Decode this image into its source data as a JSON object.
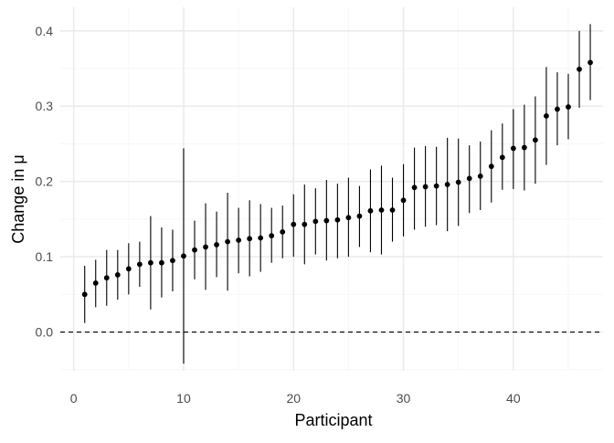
{
  "chart_data": {
    "type": "scatter",
    "title": "",
    "xlabel": "Participant",
    "ylabel": "Change in μ",
    "xlim": [
      0,
      47
    ],
    "ylim": [
      -0.05,
      0.42
    ],
    "x_ticks": [
      0,
      10,
      20,
      30,
      40
    ],
    "y_ticks": [
      0.0,
      0.1,
      0.2,
      0.3,
      0.4
    ],
    "x_tick_labels": [
      "0",
      "10",
      "20",
      "30",
      "40"
    ],
    "y_tick_labels": [
      "0.0",
      "0.1",
      "0.2",
      "0.3",
      "0.4"
    ],
    "grid": true,
    "reference_line": {
      "y": 0.0,
      "style": "dashed"
    },
    "points": [
      {
        "x": 1,
        "y": 0.05,
        "lo": 0.012,
        "hi": 0.088
      },
      {
        "x": 2,
        "y": 0.065,
        "lo": 0.033,
        "hi": 0.096
      },
      {
        "x": 3,
        "y": 0.072,
        "lo": 0.035,
        "hi": 0.109
      },
      {
        "x": 4,
        "y": 0.076,
        "lo": 0.043,
        "hi": 0.109
      },
      {
        "x": 5,
        "y": 0.084,
        "lo": 0.05,
        "hi": 0.118
      },
      {
        "x": 6,
        "y": 0.09,
        "lo": 0.06,
        "hi": 0.12
      },
      {
        "x": 7,
        "y": 0.092,
        "lo": 0.03,
        "hi": 0.154
      },
      {
        "x": 8,
        "y": 0.092,
        "lo": 0.046,
        "hi": 0.139
      },
      {
        "x": 9,
        "y": 0.095,
        "lo": 0.054,
        "hi": 0.136
      },
      {
        "x": 10,
        "y": 0.101,
        "lo": -0.042,
        "hi": 0.244
      },
      {
        "x": 11,
        "y": 0.109,
        "lo": 0.07,
        "hi": 0.148
      },
      {
        "x": 12,
        "y": 0.113,
        "lo": 0.056,
        "hi": 0.171
      },
      {
        "x": 13,
        "y": 0.116,
        "lo": 0.073,
        "hi": 0.16
      },
      {
        "x": 14,
        "y": 0.12,
        "lo": 0.055,
        "hi": 0.185
      },
      {
        "x": 15,
        "y": 0.122,
        "lo": 0.078,
        "hi": 0.165
      },
      {
        "x": 16,
        "y": 0.124,
        "lo": 0.074,
        "hi": 0.175
      },
      {
        "x": 17,
        "y": 0.125,
        "lo": 0.08,
        "hi": 0.17
      },
      {
        "x": 18,
        "y": 0.128,
        "lo": 0.092,
        "hi": 0.165
      },
      {
        "x": 19,
        "y": 0.133,
        "lo": 0.098,
        "hi": 0.168
      },
      {
        "x": 20,
        "y": 0.143,
        "lo": 0.1,
        "hi": 0.183
      },
      {
        "x": 21,
        "y": 0.143,
        "lo": 0.09,
        "hi": 0.196
      },
      {
        "x": 22,
        "y": 0.147,
        "lo": 0.103,
        "hi": 0.191
      },
      {
        "x": 23,
        "y": 0.148,
        "lo": 0.095,
        "hi": 0.202
      },
      {
        "x": 24,
        "y": 0.149,
        "lo": 0.098,
        "hi": 0.197
      },
      {
        "x": 25,
        "y": 0.152,
        "lo": 0.1,
        "hi": 0.205
      },
      {
        "x": 26,
        "y": 0.154,
        "lo": 0.113,
        "hi": 0.194
      },
      {
        "x": 27,
        "y": 0.161,
        "lo": 0.106,
        "hi": 0.216
      },
      {
        "x": 28,
        "y": 0.162,
        "lo": 0.103,
        "hi": 0.221
      },
      {
        "x": 29,
        "y": 0.162,
        "lo": 0.12,
        "hi": 0.205
      },
      {
        "x": 30,
        "y": 0.175,
        "lo": 0.127,
        "hi": 0.223
      },
      {
        "x": 31,
        "y": 0.192,
        "lo": 0.136,
        "hi": 0.245
      },
      {
        "x": 32,
        "y": 0.193,
        "lo": 0.14,
        "hi": 0.247
      },
      {
        "x": 33,
        "y": 0.194,
        "lo": 0.142,
        "hi": 0.246
      },
      {
        "x": 34,
        "y": 0.196,
        "lo": 0.134,
        "hi": 0.258
      },
      {
        "x": 35,
        "y": 0.199,
        "lo": 0.141,
        "hi": 0.257
      },
      {
        "x": 36,
        "y": 0.204,
        "lo": 0.158,
        "hi": 0.248
      },
      {
        "x": 37,
        "y": 0.207,
        "lo": 0.162,
        "hi": 0.253
      },
      {
        "x": 38,
        "y": 0.22,
        "lo": 0.172,
        "hi": 0.268
      },
      {
        "x": 39,
        "y": 0.232,
        "lo": 0.189,
        "hi": 0.277
      },
      {
        "x": 40,
        "y": 0.244,
        "lo": 0.19,
        "hi": 0.296
      },
      {
        "x": 41,
        "y": 0.245,
        "lo": 0.188,
        "hi": 0.302
      },
      {
        "x": 42,
        "y": 0.255,
        "lo": 0.197,
        "hi": 0.313
      },
      {
        "x": 43,
        "y": 0.287,
        "lo": 0.222,
        "hi": 0.352
      },
      {
        "x": 44,
        "y": 0.296,
        "lo": 0.248,
        "hi": 0.345
      },
      {
        "x": 45,
        "y": 0.299,
        "lo": 0.256,
        "hi": 0.343
      },
      {
        "x": 46,
        "y": 0.349,
        "lo": 0.298,
        "hi": 0.4
      },
      {
        "x": 47,
        "y": 0.358,
        "lo": 0.308,
        "hi": 0.409
      }
    ],
    "colors": {
      "point": "#000000",
      "errorbar": "#000000",
      "grid_major": "#ebebeb",
      "grid_minor": "#f5f5f5",
      "tick_label": "#4d4d4d",
      "reference_line": "#000000"
    }
  }
}
